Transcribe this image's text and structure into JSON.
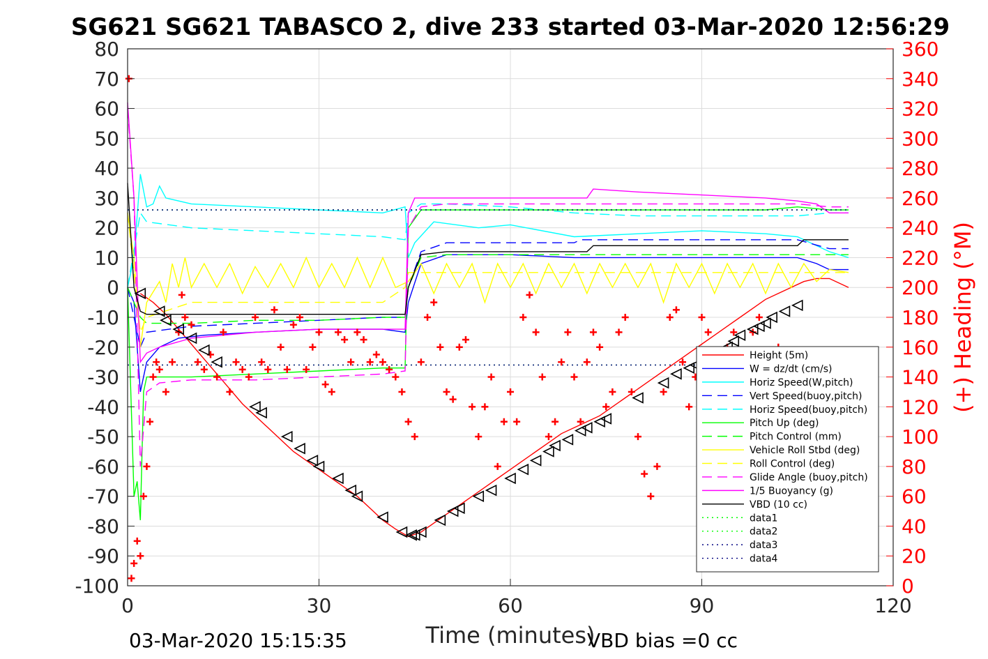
{
  "title": "SG621 SG621 TABASCO 2, dive 233 started 03-Mar-2020 12:56:29",
  "footer_left": "03-Mar-2020 15:15:35",
  "footer_right": "VBD bias =0 cc",
  "chart_data": {
    "type": "line",
    "xlabel": "Time (minutes)",
    "ylabel": "",
    "y2label": "(+) Heading (°M)",
    "xlim": [
      0,
      120
    ],
    "ylim": [
      -100,
      80
    ],
    "y2lim": [
      0,
      360
    ],
    "xticks": [
      0,
      30,
      60,
      90,
      120
    ],
    "yticks": [
      -100,
      -90,
      -80,
      -70,
      -60,
      -50,
      -40,
      -30,
      -20,
      -10,
      0,
      10,
      20,
      30,
      40,
      50,
      60,
      70,
      80
    ],
    "y2ticks": [
      0,
      20,
      40,
      60,
      80,
      100,
      120,
      140,
      160,
      180,
      200,
      220,
      240,
      260,
      280,
      300,
      320,
      340,
      360
    ],
    "grid": true,
    "legend_position": "bottom-right",
    "series": [
      {
        "name": "Height (5m)",
        "color": "#ff0000",
        "style": "solid",
        "x": [
          2,
          4,
          6,
          8,
          10,
          12,
          14,
          16,
          18,
          20,
          22,
          24,
          26,
          28,
          30,
          32,
          34,
          36,
          38,
          40,
          42,
          44,
          46,
          48,
          50,
          52,
          54,
          56,
          58,
          60,
          62,
          64,
          66,
          68,
          70,
          72,
          74,
          76,
          78,
          80,
          82,
          84,
          86,
          88,
          90,
          92,
          94,
          96,
          98,
          100,
          102,
          104,
          106,
          108,
          110,
          113
        ],
        "y": [
          -2,
          -5,
          -9,
          -14,
          -19,
          -24,
          -29,
          -34,
          -39,
          -43,
          -47,
          -51,
          -55,
          -58,
          -61,
          -64,
          -67,
          -70,
          -74,
          -78,
          -81,
          -83.5,
          -82,
          -79,
          -76,
          -73,
          -70,
          -67,
          -64,
          -61,
          -58,
          -55,
          -52,
          -49,
          -47,
          -45,
          -43,
          -40,
          -37,
          -34,
          -31,
          -28,
          -25,
          -22,
          -19,
          -16,
          -13,
          -10,
          -7,
          -4,
          -2,
          0,
          2,
          3,
          3,
          0
        ]
      },
      {
        "name": "W = dz/dt (cm/s)",
        "color": "#0000ff",
        "style": "solid",
        "x": [
          0,
          1,
          2,
          3,
          5,
          8,
          12,
          20,
          30,
          40,
          43.5,
          44,
          46,
          50,
          60,
          70,
          80,
          90,
          100,
          105,
          108,
          110,
          113
        ],
        "y": [
          0,
          -5,
          -35,
          -25,
          -20,
          -17,
          -16,
          -15,
          -14,
          -14,
          -15,
          -5,
          8,
          11,
          11,
          10,
          10,
          10,
          10,
          10,
          8,
          6,
          6
        ]
      },
      {
        "name": "Horiz Speed(W,pitch)",
        "color": "#00ffff",
        "style": "solid",
        "x": [
          0,
          1,
          2,
          3,
          4,
          5,
          6,
          10,
          20,
          30,
          40,
          43.5,
          44,
          45,
          48,
          55,
          60,
          70,
          80,
          90,
          100,
          105,
          110,
          113
        ],
        "y": [
          0,
          10,
          38,
          27,
          28,
          34,
          30,
          28,
          27,
          26,
          25,
          27,
          10,
          15,
          22,
          20,
          21,
          17,
          18,
          19,
          18,
          17,
          12,
          10
        ]
      },
      {
        "name": "Vert Speed(buoy,pitch)",
        "color": "#0000ff",
        "style": "dashed",
        "x": [
          0,
          2,
          3,
          10,
          20,
          30,
          40,
          43.5,
          44,
          46,
          50,
          60,
          70,
          71,
          80,
          90,
          100,
          105,
          110,
          113
        ],
        "y": [
          0,
          -20,
          -15,
          -13,
          -12,
          -11,
          -10,
          -10,
          0,
          12,
          15,
          15,
          15,
          16,
          16,
          16,
          16,
          16,
          13,
          13
        ]
      },
      {
        "name": "Horiz Speed(buoy,pitch)",
        "color": "#00ffff",
        "style": "dashed",
        "x": [
          0,
          2,
          3,
          10,
          20,
          30,
          40,
          43.5,
          44,
          46,
          50,
          60,
          70,
          80,
          90,
          100,
          105,
          110,
          113
        ],
        "y": [
          0,
          25,
          22,
          20,
          19,
          18,
          17,
          16,
          25,
          28,
          28,
          27,
          25,
          24,
          24,
          24,
          24,
          25,
          25
        ]
      },
      {
        "name": "Pitch Up (deg)",
        "color": "#00ff00",
        "style": "solid",
        "x": [
          0,
          1,
          1.5,
          2,
          2.5,
          3,
          5,
          10,
          20,
          30,
          40,
          43.5,
          44,
          46,
          50,
          60,
          70,
          80,
          90,
          100,
          105,
          110,
          113
        ],
        "y": [
          0,
          -70,
          -65,
          -78,
          -35,
          -30,
          -30,
          -30,
          -29,
          -28,
          -27,
          -27,
          20,
          26,
          26,
          26,
          26,
          26,
          26,
          26,
          27,
          26,
          26
        ]
      },
      {
        "name": "Pitch Control (mm)",
        "color": "#00ff00",
        "style": "dashed",
        "x": [
          0,
          2,
          3,
          10,
          20,
          30,
          40,
          43.5,
          44,
          46,
          50,
          60,
          70,
          80,
          90,
          100,
          105,
          110,
          113
        ],
        "y": [
          0,
          -10,
          -12,
          -12,
          -11,
          -11,
          -10,
          -10,
          0,
          10,
          11,
          11,
          11,
          11,
          11,
          11,
          11,
          11,
          11
        ]
      },
      {
        "name": "Vehicle Roll Stbd (deg)",
        "color": "#ffff00",
        "style": "solid",
        "x": [
          0,
          1,
          2,
          3,
          5,
          6,
          7,
          8,
          9,
          10,
          12,
          14,
          16,
          18,
          20,
          22,
          24,
          26,
          28,
          30,
          32,
          34,
          36,
          38,
          40,
          42,
          44,
          46,
          48,
          50,
          52,
          54,
          56,
          58,
          60,
          62,
          64,
          66,
          68,
          70,
          72,
          74,
          76,
          78,
          80,
          82,
          84,
          86,
          88,
          90,
          92,
          94,
          96,
          98,
          100,
          102,
          104,
          106,
          108,
          110,
          113
        ],
        "y": [
          25,
          10,
          -20,
          -5,
          2,
          -5,
          8,
          0,
          10,
          0,
          8,
          0,
          8,
          -2,
          7,
          0,
          8,
          0,
          10,
          0,
          8,
          0,
          10,
          0,
          10,
          0,
          2,
          8,
          -2,
          8,
          0,
          8,
          -5,
          8,
          0,
          8,
          -2,
          8,
          0,
          8,
          -2,
          8,
          0,
          8,
          0,
          8,
          -5,
          8,
          0,
          8,
          -2,
          8,
          0,
          8,
          -2,
          8,
          0,
          8,
          2,
          6,
          5
        ]
      },
      {
        "name": "Roll Control (deg)",
        "color": "#ffff00",
        "style": "dashed",
        "x": [
          0,
          2,
          3,
          10,
          20,
          30,
          40,
          43.5,
          44,
          50,
          60,
          70,
          80,
          90,
          100,
          110,
          113
        ],
        "y": [
          25,
          -15,
          -10,
          -5,
          -5,
          -5,
          -5,
          0,
          5,
          5,
          5,
          5,
          5,
          5,
          5,
          5,
          5
        ]
      },
      {
        "name": "Glide Angle (buoy,pitch)",
        "color": "#ff00ff",
        "style": "dashed",
        "x": [
          0,
          1,
          2,
          3,
          5,
          10,
          20,
          30,
          40,
          43.5,
          44,
          46,
          50,
          60,
          70,
          80,
          90,
          100,
          105,
          110,
          113
        ],
        "y": [
          60,
          30,
          -60,
          -35,
          -32,
          -31,
          -31,
          -30,
          -29,
          -28,
          20,
          27,
          28,
          28,
          28,
          28,
          28,
          28,
          28,
          27,
          27
        ]
      },
      {
        "name": "1/5 Buoyancy (g)",
        "color": "#ff00ff",
        "style": "solid",
        "x": [
          0,
          1,
          2,
          3,
          5,
          10,
          20,
          30,
          40,
          43.5,
          44,
          45,
          50,
          60,
          70,
          72,
          73,
          80,
          90,
          100,
          105,
          108,
          110,
          113
        ],
        "y": [
          62,
          30,
          -25,
          -22,
          -20,
          -17,
          -15,
          -14,
          -14,
          -14,
          25,
          30,
          30,
          30,
          30,
          30,
          33,
          32,
          31,
          30,
          29,
          28,
          25,
          25
        ]
      },
      {
        "name": "VBD (10 cc)",
        "color": "#000000",
        "style": "solid",
        "x": [
          0,
          1,
          2,
          3,
          5,
          10,
          20,
          30,
          40,
          43.5,
          44,
          46,
          50,
          60,
          70,
          72,
          73,
          80,
          90,
          100,
          105,
          106,
          110,
          113
        ],
        "y": [
          35,
          0,
          -8,
          -9,
          -9,
          -9,
          -9,
          -9,
          -9,
          -9,
          0,
          11,
          12,
          12,
          12,
          12,
          14,
          14,
          14,
          14,
          14,
          16,
          16,
          16
        ]
      },
      {
        "name": "data1",
        "color": "#00ff00",
        "style": "dotted",
        "x": [
          0,
          113
        ],
        "y": [
          26,
          26
        ]
      },
      {
        "name": "data2",
        "color": "#00ff00",
        "style": "dotted",
        "x": [
          0,
          113
        ],
        "y": [
          -26,
          -26
        ]
      },
      {
        "name": "data3",
        "color": "#000080",
        "style": "dotted",
        "x": [
          0,
          113
        ],
        "y": [
          26,
          26
        ]
      },
      {
        "name": "data4",
        "color": "#000080",
        "style": "dotted",
        "x": [
          0,
          113
        ],
        "y": [
          -26,
          -26
        ]
      }
    ],
    "heading_series": {
      "name": "(+) Heading (°M)",
      "color": "#ff0000",
      "marker": "+",
      "axis": "right",
      "x": [
        0.2,
        0.6,
        1,
        1.5,
        2,
        2.5,
        3,
        3.5,
        4,
        4.5,
        5,
        6,
        7,
        8,
        8.5,
        9,
        10,
        11,
        12,
        13,
        14,
        15,
        16,
        17,
        18,
        19,
        20,
        21,
        22,
        23,
        24,
        25,
        26,
        27,
        28,
        29,
        30,
        31,
        32,
        33,
        34,
        35,
        36,
        37,
        38,
        39,
        40,
        41,
        42,
        43,
        44,
        45,
        46,
        47,
        48,
        49,
        50,
        51,
        52,
        53,
        54,
        55,
        56,
        57,
        58,
        59,
        60,
        61,
        62,
        63,
        64,
        65,
        66,
        67,
        68,
        69,
        70,
        71,
        72,
        73,
        74,
        75,
        76,
        77,
        78,
        79,
        80,
        81,
        82,
        83,
        84,
        85,
        86,
        87,
        88,
        89,
        90,
        91,
        92,
        93,
        94,
        95,
        96,
        97,
        98,
        99,
        100,
        101,
        102,
        103
      ],
      "y": [
        340,
        5,
        15,
        30,
        20,
        60,
        80,
        110,
        140,
        150,
        145,
        130,
        150,
        170,
        195,
        180,
        175,
        150,
        145,
        155,
        140,
        170,
        130,
        150,
        145,
        140,
        180,
        150,
        145,
        185,
        160,
        145,
        175,
        180,
        145,
        160,
        170,
        135,
        130,
        170,
        165,
        150,
        170,
        165,
        150,
        155,
        150,
        145,
        140,
        130,
        110,
        100,
        150,
        180,
        190,
        160,
        130,
        125,
        160,
        165,
        120,
        100,
        120,
        140,
        80,
        110,
        130,
        110,
        180,
        195,
        170,
        140,
        100,
        110,
        150,
        170,
        140,
        110,
        150,
        170,
        160,
        120,
        130,
        170,
        180,
        130,
        100,
        75,
        60,
        80,
        130,
        180,
        185,
        150,
        120,
        140,
        180,
        170,
        115,
        110,
        160,
        170,
        140,
        100,
        170,
        180,
        130,
        110,
        160,
        150
      ]
    },
    "dive_markers": {
      "marker": "triangle",
      "color": "#000000",
      "x": [
        2,
        5,
        6,
        8,
        10,
        12,
        14,
        20,
        21,
        25,
        27,
        29,
        30,
        33,
        35,
        36,
        40,
        43,
        44.5,
        45,
        46,
        49,
        51,
        52,
        55,
        57,
        60,
        62,
        64,
        66,
        67,
        69,
        71,
        72,
        74,
        75,
        80,
        84,
        86,
        88,
        89,
        90,
        94,
        95,
        96,
        98,
        99,
        100,
        101,
        103,
        105
      ],
      "y": [
        -2,
        -8,
        -11,
        -14,
        -17,
        -21,
        -25,
        -40,
        -42,
        -50,
        -54,
        -58,
        -60,
        -64,
        -68,
        -70,
        -77,
        -82,
        -83,
        -83,
        -82,
        -78,
        -75,
        -74,
        -70,
        -68,
        -64,
        -61,
        -58,
        -55,
        -53,
        -51,
        -48,
        -47,
        -45,
        -44,
        -37,
        -32,
        -29,
        -27,
        -26,
        -25,
        -20,
        -18,
        -16,
        -14,
        -13,
        -12,
        -10,
        -8,
        -6
      ]
    }
  }
}
